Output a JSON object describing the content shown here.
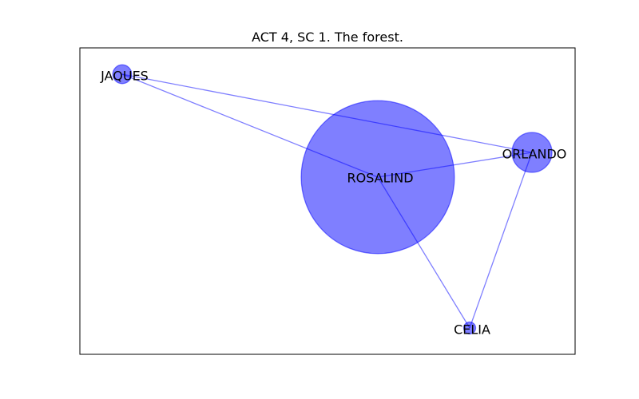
{
  "title": "ACT 4, SC 1. The forest.",
  "style": {
    "node_color": "#0000ff",
    "node_opacity": 0.5,
    "edge_color": "#0000ff",
    "edge_opacity": 0.5,
    "frame_color": "#000000",
    "background": "#ffffff"
  },
  "nodes": [
    {
      "id": "JAQUES",
      "label": "JAQUES",
      "weight": 1
    },
    {
      "id": "ROSALIND",
      "label": "ROSALIND",
      "weight": 66
    },
    {
      "id": "ORLANDO",
      "label": "ORLANDO",
      "weight": 4.5
    },
    {
      "id": "CELIA",
      "label": "CELIA",
      "weight": 0.4
    }
  ],
  "edges": [
    {
      "source": "JAQUES",
      "target": "ROSALIND"
    },
    {
      "source": "JAQUES",
      "target": "ORLANDO"
    },
    {
      "source": "ROSALIND",
      "target": "ORLANDO"
    },
    {
      "source": "ROSALIND",
      "target": "CELIA"
    },
    {
      "source": "ORLANDO",
      "target": "CELIA"
    }
  ]
}
